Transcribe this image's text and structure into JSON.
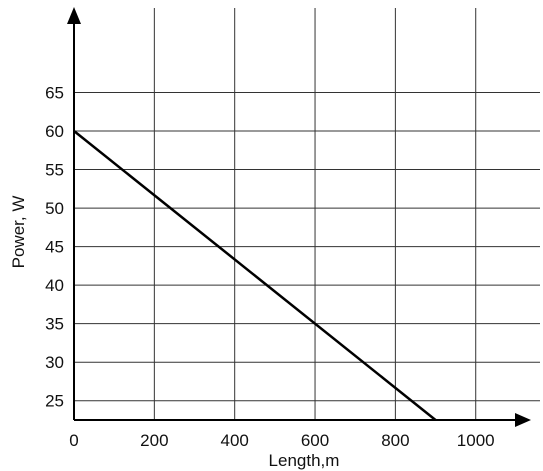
{
  "chart_data": {
    "type": "line",
    "title": "",
    "xlabel": "Length,m",
    "ylabel": "Power, W",
    "xlim": [
      0,
      1160
    ],
    "ylim": [
      22.5,
      77
    ],
    "x_ticks": [
      0,
      200,
      400,
      600,
      800,
      1000
    ],
    "x_tick_labels": [
      "0",
      "200",
      "400",
      "600",
      "800",
      "1000"
    ],
    "x_grid": [
      0,
      200,
      400,
      600,
      800,
      1000
    ],
    "y_ticks": [
      25,
      30,
      35,
      40,
      45,
      50,
      55,
      60,
      65
    ],
    "y_tick_labels": [
      "25",
      "30",
      "35",
      "40",
      "45",
      "50",
      "55",
      "60",
      "65"
    ],
    "y_grid": [
      25,
      30,
      35,
      40,
      45,
      50,
      55,
      60,
      65
    ],
    "grid": true,
    "legend": "none",
    "series": [
      {
        "x": [
          0,
          900
        ],
        "y": [
          60,
          22.5
        ],
        "color": "#000000"
      }
    ]
  }
}
